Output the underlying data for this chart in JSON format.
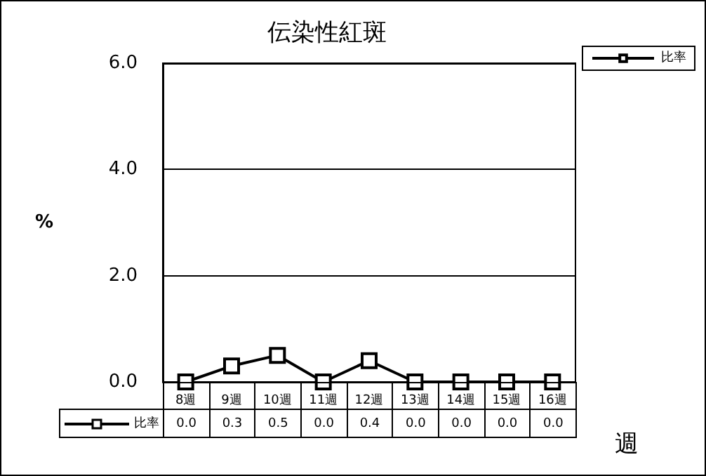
{
  "chart_data": {
    "type": "line",
    "title": "伝染性紅斑",
    "xlabel": "週",
    "ylabel": "%",
    "categories": [
      "8週",
      "9週",
      "10週",
      "11週",
      "12週",
      "13週",
      "14週",
      "15週",
      "16週"
    ],
    "series": [
      {
        "name": "比率",
        "color": "#000000",
        "values": [
          0.0,
          0.3,
          0.5,
          0.0,
          0.4,
          0.0,
          0.0,
          0.0,
          0.0
        ],
        "value_labels": [
          "0.0",
          "0.3",
          "0.5",
          "0.0",
          "0.4",
          "0.0",
          "0.0",
          "0.0",
          "0.0"
        ]
      }
    ],
    "ylim": [
      0,
      6
    ],
    "yticks": [
      {
        "value": 0,
        "label": "0.0"
      },
      {
        "value": 2,
        "label": "2.0"
      },
      {
        "value": 4,
        "label": "4.0"
      },
      {
        "value": 6,
        "label": "6.0"
      }
    ],
    "grid": "y",
    "legend": "top right",
    "marker": "square",
    "line_style": "solid"
  }
}
